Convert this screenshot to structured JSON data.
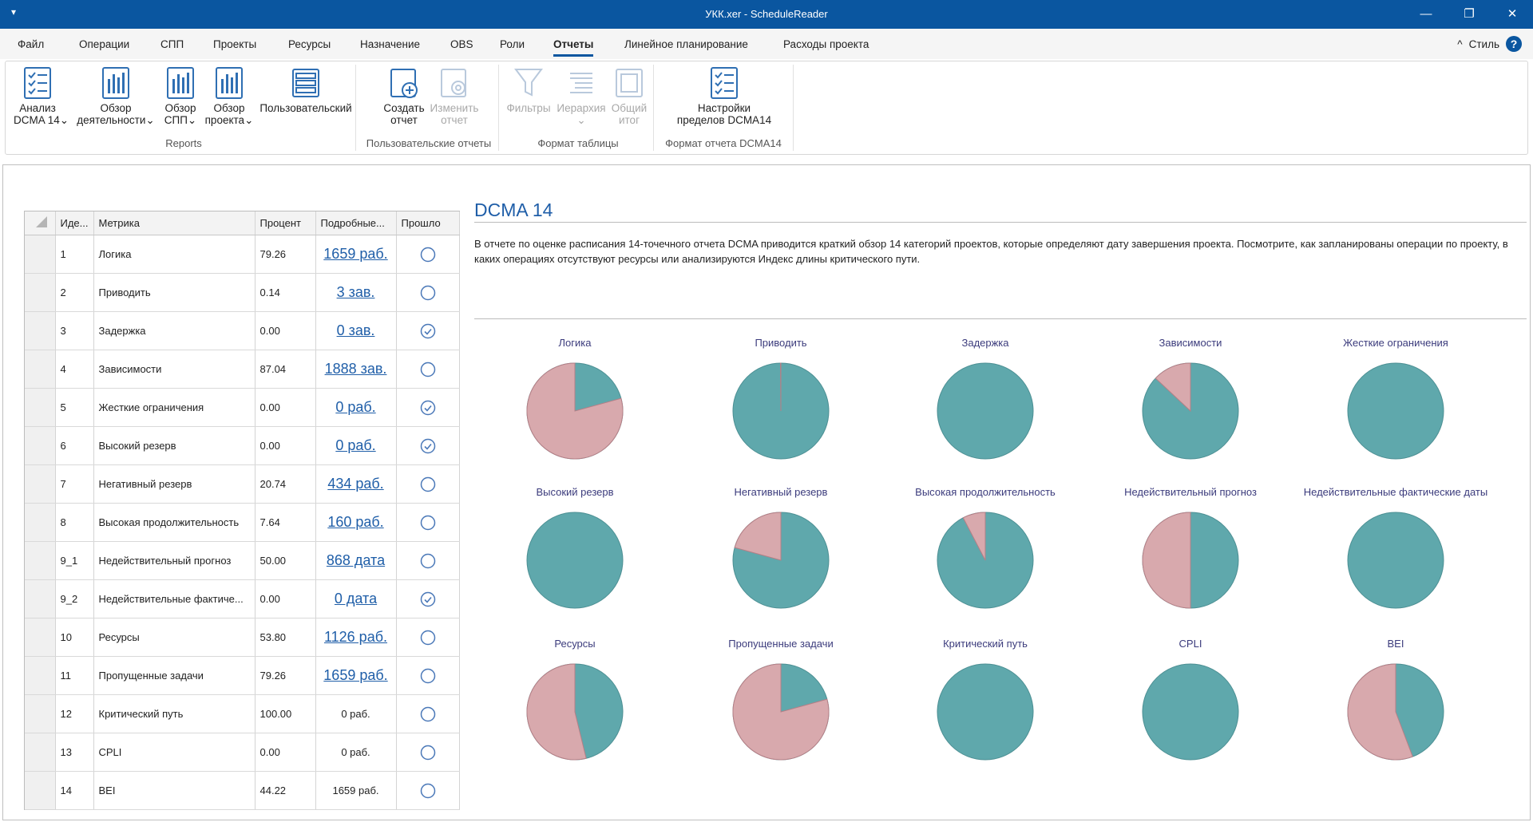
{
  "window": {
    "title": "УКК.xer - ScheduleReader",
    "quick_access": "▾",
    "minimize": "—",
    "restore": "❐",
    "close": "✕"
  },
  "menu": {
    "items": [
      "Файл",
      "Операции",
      "СПП",
      "Проекты",
      "Ресурсы",
      "Назначение",
      "OBS",
      "Роли",
      "Отчеты",
      "Линейное планирование",
      "Расходы проекта"
    ],
    "active": "Отчеты",
    "style_label": "Стиль",
    "collapse_icon": "^",
    "help": "?"
  },
  "ribbon": {
    "buttons": [
      {
        "line1": "Анализ",
        "line2": "DCMA 14",
        "icon": "checklist-icon"
      },
      {
        "line1": "Обзор",
        "line2": "деятельности",
        "icon": "bar-chart-icon"
      },
      {
        "line1": "Обзор",
        "line2": "СПП",
        "icon": "bar-chart-icon"
      },
      {
        "line1": "Обзор",
        "line2": "проекта",
        "icon": "bar-chart-icon"
      },
      {
        "line1": "Пользовательский",
        "line2": "",
        "icon": "table-icon"
      },
      {
        "line1": "Создать",
        "line2": "отчет",
        "icon": "create-report-icon"
      },
      {
        "line1": "Изменить",
        "line2": "отчет",
        "icon": "edit-report-icon"
      },
      {
        "line1": "Фильтры",
        "line2": "",
        "icon": "filter-icon"
      },
      {
        "line1": "Иерархия",
        "line2": "",
        "icon": "hierarchy-icon"
      },
      {
        "line1": "Общий",
        "line2": "итог",
        "icon": "total-icon"
      },
      {
        "line1": "Настройки",
        "line2": "пределов DCMA14",
        "icon": "settings-checklist-icon"
      }
    ],
    "groups": [
      "Reports",
      "Пользовательские отчеты",
      "Формат таблицы",
      "Формат отчета DCMA14"
    ],
    "dropdown_glyph": "⌄"
  },
  "grid": {
    "headers": [
      "Иде...",
      "Метрика",
      "Процент",
      "Подробные...",
      "Прошло"
    ],
    "rows": [
      {
        "id": "1",
        "metric": "Логика",
        "percent": "79.26",
        "detail": "1659 раб.",
        "link": true,
        "passed": false
      },
      {
        "id": "2",
        "metric": "Приводить",
        "percent": "0.14",
        "detail": "3 зав.",
        "link": true,
        "passed": false
      },
      {
        "id": "3",
        "metric": "Задержка",
        "percent": "0.00",
        "detail": "0 зав.",
        "link": true,
        "passed": true
      },
      {
        "id": "4",
        "metric": "Зависимости",
        "percent": "87.04",
        "detail": "1888 зав.",
        "link": true,
        "passed": false
      },
      {
        "id": "5",
        "metric": "Жесткие ограничения",
        "percent": "0.00",
        "detail": "0 раб.",
        "link": true,
        "passed": true
      },
      {
        "id": "6",
        "metric": "Высокий резерв",
        "percent": "0.00",
        "detail": "0 раб.",
        "link": true,
        "passed": true
      },
      {
        "id": "7",
        "metric": "Негативный резерв",
        "percent": "20.74",
        "detail": "434 раб.",
        "link": true,
        "passed": false
      },
      {
        "id": "8",
        "metric": "Высокая продолжительность",
        "percent": "7.64",
        "detail": "160 раб.",
        "link": true,
        "passed": false
      },
      {
        "id": "9_1",
        "metric": "Недействительный прогноз",
        "percent": "50.00",
        "detail": "868 дата",
        "link": true,
        "passed": false
      },
      {
        "id": "9_2",
        "metric": "Недействительные фактиче...",
        "percent": "0.00",
        "detail": "0 дата",
        "link": true,
        "passed": true
      },
      {
        "id": "10",
        "metric": "Ресурсы",
        "percent": "53.80",
        "detail": "1126 раб.",
        "link": true,
        "passed": false
      },
      {
        "id": "11",
        "metric": "Пропущенные задачи",
        "percent": "79.26",
        "detail": "1659 раб.",
        "link": true,
        "passed": false
      },
      {
        "id": "12",
        "metric": "Критический путь",
        "percent": "100.00",
        "detail": "0 раб.",
        "link": false,
        "passed": false
      },
      {
        "id": "13",
        "metric": "CPLI",
        "percent": "0.00",
        "detail": "0 раб.",
        "link": false,
        "passed": false
      },
      {
        "id": "14",
        "metric": "BEI",
        "percent": "44.22",
        "detail": "1659 раб.",
        "link": false,
        "passed": false
      }
    ]
  },
  "report": {
    "title": "DCMA 14",
    "description": "В отчете по оценке расписания 14-точечного отчета DCMA приводится краткий обзор 14 категорий проектов, которые определяют дату завершения проекта. Посмотрите, как запланированы операции по проекту, в каких операциях отсутствуют ресурсы или анализируются Индекс длины критического пути."
  },
  "colors": {
    "accent": "#0a56a0",
    "pie_teal": "#5fa8ac",
    "pie_pink": "#d8a9ad",
    "link": "#1f5ea8",
    "pie_title": "#3b3b7c"
  },
  "chart_data": {
    "type": "pie",
    "charts": [
      {
        "title": "Логика",
        "pink_fraction": 0.7926
      },
      {
        "title": "Приводить",
        "pink_fraction": 0.0014
      },
      {
        "title": "Задержка",
        "pink_fraction": 0
      },
      {
        "title": "Зависимости",
        "pink_fraction": 0.13
      },
      {
        "title": "Жесткие ограничения",
        "pink_fraction": 0
      },
      {
        "title": "Высокий резерв",
        "pink_fraction": 0
      },
      {
        "title": "Негативный резерв",
        "pink_fraction": 0.2074
      },
      {
        "title": "Высокая продолжительность",
        "pink_fraction": 0.0764
      },
      {
        "title": "Недействительный прогноз",
        "pink_fraction": 0.5
      },
      {
        "title": "Недействительные фактические даты",
        "pink_fraction": 0
      },
      {
        "title": "Ресурсы",
        "pink_fraction": 0.538
      },
      {
        "title": "Пропущенные задачи",
        "pink_fraction": 0.7926
      },
      {
        "title": "Критический путь",
        "pink_fraction": 0
      },
      {
        "title": "CPLI",
        "pink_fraction": 0
      },
      {
        "title": "BEI",
        "pink_fraction": 0.5578
      }
    ]
  }
}
